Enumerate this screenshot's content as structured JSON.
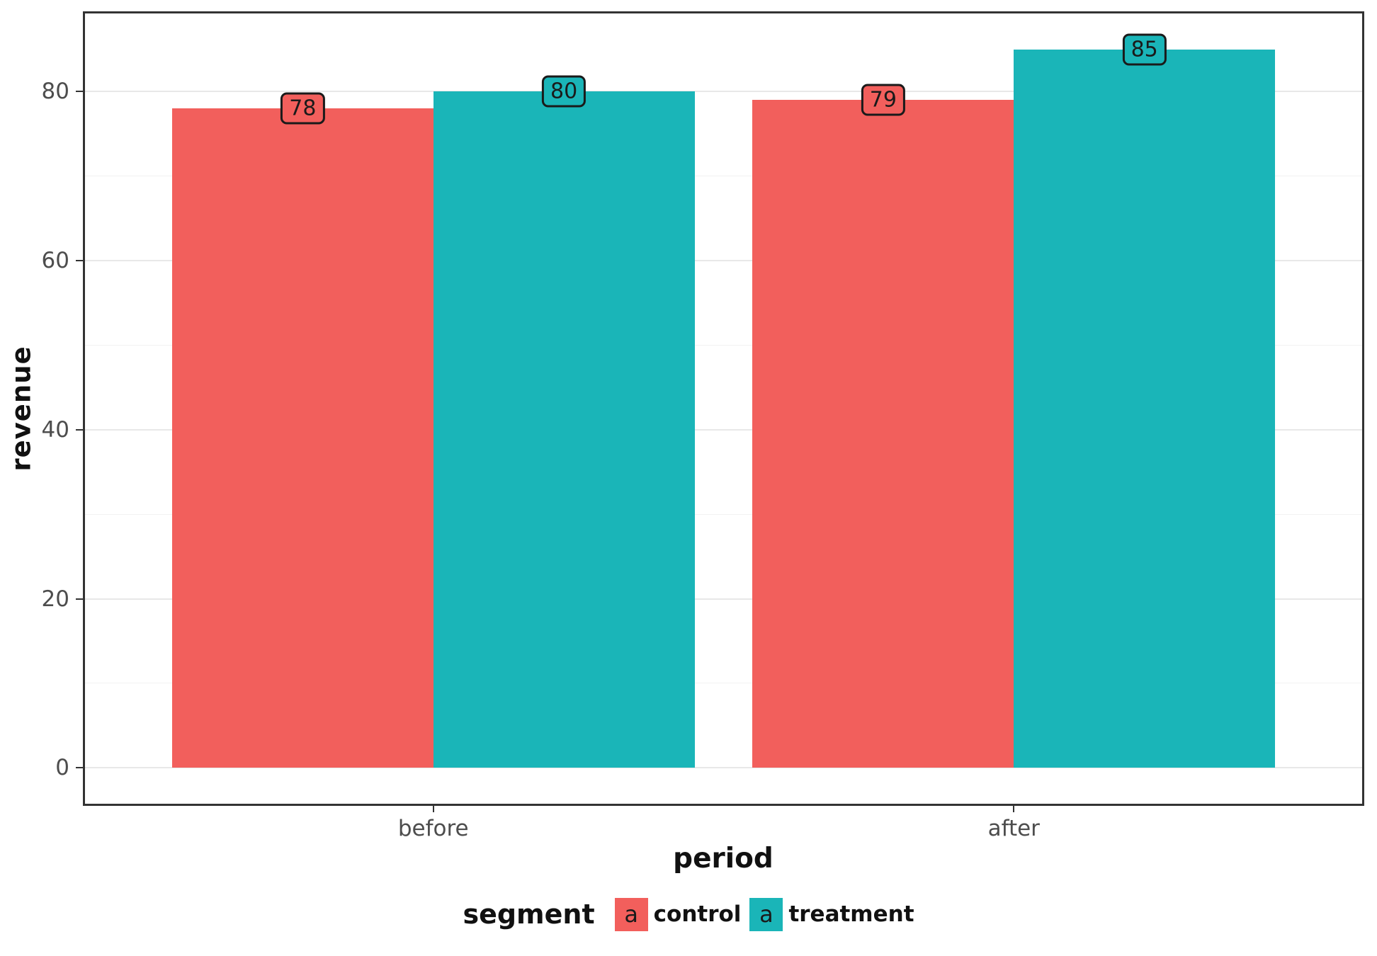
{
  "chart_data": {
    "type": "bar",
    "categories": [
      "before",
      "after"
    ],
    "series": [
      {
        "name": "control",
        "color": "#F25F5C",
        "values": [
          78,
          79
        ]
      },
      {
        "name": "treatment",
        "color": "#1AB5B8",
        "values": [
          80,
          85
        ]
      }
    ],
    "bar_labels": [
      [
        78,
        79
      ],
      [
        80,
        85
      ]
    ],
    "xlabel": "period",
    "ylabel": "revenue",
    "ylim": [
      -4.25,
      89.25
    ],
    "y_major_ticks": [
      0,
      20,
      40,
      60,
      80
    ],
    "y_minor_ticks": [
      10,
      30,
      50,
      70
    ],
    "x_domain": [
      0.4,
      2.6
    ],
    "bar_width_units": 0.45,
    "grid": "on",
    "legend_position": "bottom",
    "legend_title": "segment",
    "legend_key_glyph": "a"
  },
  "colors": {
    "control": "#F25F5C",
    "treatment": "#1AB5B8",
    "panel_border": "#333333",
    "axis_text": "#4D4D4D",
    "title_text": "#111111",
    "grid_major": "#E8E8E8",
    "grid_minor": "#F2F2F2",
    "background": "#FFFFFF"
  }
}
